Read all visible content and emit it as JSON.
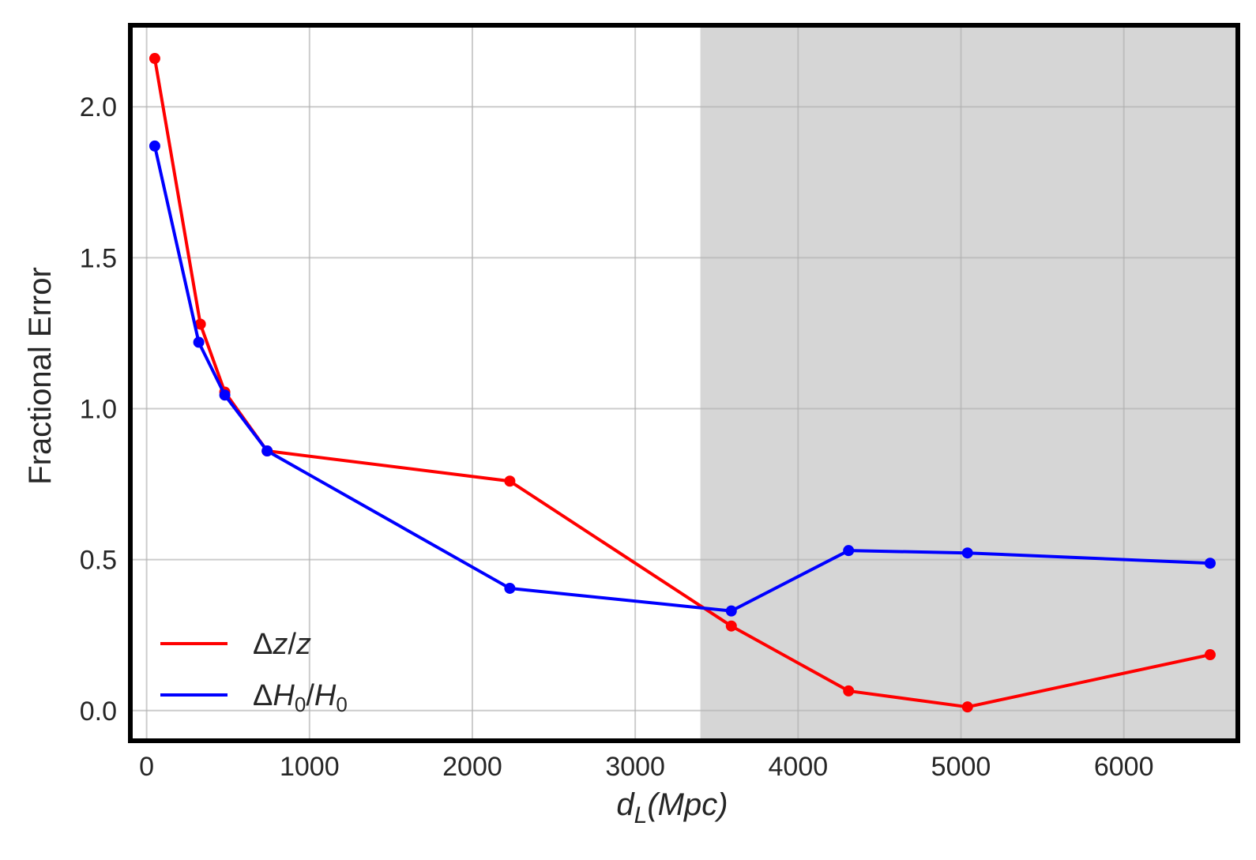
{
  "chart_data": {
    "type": "line",
    "xlabel": "d_L(Mpc)",
    "ylabel": "Fractional Error",
    "xlim": [
      -100,
      6700
    ],
    "ylim": [
      -0.1,
      2.27
    ],
    "x_ticks": [
      0,
      1000,
      2000,
      3000,
      4000,
      5000,
      6000
    ],
    "y_ticks": [
      0.0,
      0.5,
      1.0,
      1.5,
      2.0
    ],
    "x_tick_labels": [
      "0",
      "1000",
      "2000",
      "3000",
      "4000",
      "5000",
      "6000"
    ],
    "y_tick_labels": [
      "0.0",
      "0.5",
      "1.0",
      "1.5",
      "2.0"
    ],
    "grid": true,
    "legend_position": "lower-left",
    "shaded_region": {
      "x_start": 3400,
      "x_end": 6700,
      "color": "#d6d6d6"
    },
    "series": [
      {
        "name": "Δz/z",
        "color": "#ff0000",
        "x": [
          50,
          330,
          480,
          740,
          2230,
          3590,
          4310,
          5040,
          6530
        ],
        "y": [
          2.16,
          1.28,
          1.055,
          0.86,
          0.76,
          0.28,
          0.065,
          0.012,
          0.185
        ]
      },
      {
        "name": "ΔH0/H0",
        "color": "#0000ff",
        "x": [
          50,
          320,
          480,
          740,
          2230,
          3590,
          4310,
          5040,
          6530
        ],
        "y": [
          1.87,
          1.22,
          1.045,
          0.86,
          0.405,
          0.33,
          0.53,
          0.522,
          0.488
        ]
      }
    ]
  }
}
